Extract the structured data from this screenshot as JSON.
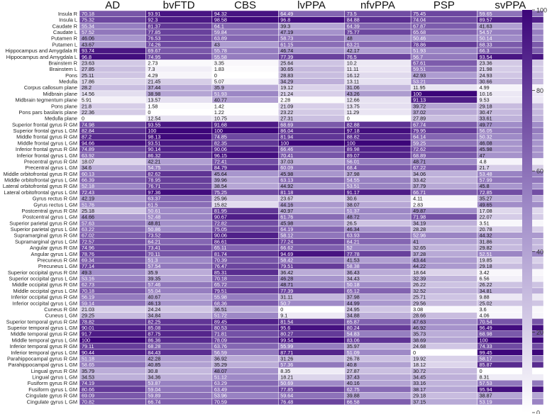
{
  "chart_data": {
    "type": "heatmap",
    "title": "",
    "xlabel": "",
    "ylabel": "",
    "columns": [
      "AD",
      "bvFTD",
      "CBS",
      "lvPPA",
      "nfvPPA",
      "PSP",
      "svPPA"
    ],
    "rows": [
      "Insula R",
      "Insula L",
      "Caudate R",
      "Caudate L",
      "Putamen R",
      "Putamen L",
      "Hippocampus and Amygdala R",
      "Hippocampus and Amygdala L",
      "Brainstem R",
      "Brainstem L",
      "Pons",
      "Medulla",
      "Corpus callosum plane",
      "Midbrain plane",
      "Midbrain tegmentum plane",
      "Pons plane",
      "Pons pars basilaris plane",
      "Medulla plane",
      "Superior frontal gyrus R GM",
      "Superior frontal gyrus L GM",
      "Middle frontal gyrus R GM",
      "Middle frontal gyrus L GM",
      "Inferior frontal gyrus R GM",
      "Inferior frontal gyrus L GM",
      "Precentral gyrus R GM",
      "Precentral gyrus L GM",
      "Middle orbitofrontal gyrus R GM",
      "Middle orbitofrontal gyrus L GM",
      "Lateral orbitofrontal gyrus R GM",
      "Lateral orbitofrontal gyrus L GM",
      "Gyrus rectus R GM",
      "Gyrus rectus L GM",
      "Postcentral gyrus R GM",
      "Postcentral gyrus L GM",
      "Superior parietal gyrus R GM",
      "Superior parietal gyrus L GM",
      "Supramarginal gyrus R GM",
      "Supramarginal gyrus L GM",
      "Angular gyrus R GM",
      "Angular gyrus L GM",
      "Precuneus R GM",
      "Precuneus L GM",
      "Superior occipital gyrus R GM",
      "Superior occipital gyrus L GM",
      "Middle occipital gyrus R GM",
      "Middle occipital gyrus L GM",
      "Inferior occipital gyrus R GM",
      "Inferior occipital gyrus L GM",
      "Cuneus R GM",
      "Cuneus L GM",
      "Superior temporal gyrus R GM",
      "Superior temporal gyrus L GM",
      "Middle temporal gyrus R GM",
      "Middle temporal gyrus L GM",
      "Inferior temporal gyrus R GM",
      "Inferior temporal gyrus L GM",
      "Parahippocampal gyrus R GM",
      "Parahippocampal gyrus L GM",
      "Lingual gyrus R GM",
      "Lingual gyrus L GM",
      "Fusiform gyrus R GM",
      "Fusiform gyrus L GM",
      "Cingulate gyrus R GM",
      "Cingulate gyrus L GM"
    ],
    "values": [
      [
        70.18,
        93.91,
        94.32,
        64.49,
        73.5,
        75.45,
        59.65
      ],
      [
        75.32,
        92.3,
        98.58,
        96.8,
        84.88,
        74.04,
        89.57
      ],
      [
        55.34,
        81.37,
        64.1,
        39.3,
        64.39,
        67.87,
        41.63
      ],
      [
        57.52,
        77.85,
        59.84,
        47.19,
        75.77,
        65.68,
        54.57
      ],
      [
        46.06,
        76.53,
        63.89,
        58.73,
        48,
        50.46,
        50.14
      ],
      [
        43.67,
        74.26,
        43,
        61.15,
        63.21,
        78.86,
        68.33
      ],
      [
        93.74,
        69.67,
        55.78,
        46.74,
        42.17,
        51.93,
        66.3
      ],
      [
        96.8,
        74.95,
        55.58,
        77.39,
        76.5,
        56.7,
        93.54
      ],
      [
        23.63,
        2.73,
        3.35,
        25.64,
        10.2,
        67.61,
        23.36
      ],
      [
        27.85,
        7.3,
        1.83,
        30.65,
        11.11,
        59.51,
        21.98
      ],
      [
        25.11,
        4.29,
        0,
        28.83,
        16.12,
        42.93,
        24.93
      ],
      [
        17.86,
        21.45,
        5.07,
        34.29,
        13.11,
        53.21,
        30.66
      ],
      [
        28.2,
        37.44,
        35.9,
        19.12,
        31.06,
        11.95,
        4.99
      ],
      [
        14.56,
        38.98,
        51.93,
        21.24,
        43.26,
        100,
        10.16
      ],
      [
        5.91,
        13.57,
        40.77,
        2.28,
        12.66,
        91.13,
        9.53
      ],
      [
        21.8,
        1.58,
        1.42,
        21.09,
        13.75,
        39.72,
        29.18
      ],
      [
        22.36,
        0,
        1.22,
        23.22,
        11.29,
        37.02,
        30.47
      ],
      [
        0,
        12.54,
        10.75,
        27.31,
        0,
        27.89,
        33.61
      ],
      [
        74.98,
        93.55,
        91.68,
        68.69,
        82.88,
        67.74,
        49.77
      ],
      [
        82.84,
        100,
        100,
        86.04,
        97.18,
        79.95,
        56.05
      ],
      [
        87.2,
        98.13,
        74.85,
        81.94,
        88.82,
        64.14,
        50.32
      ],
      [
        94.66,
        93.51,
        82.35,
        100,
        100,
        59.25,
        46.08
      ],
      [
        74.89,
        90.14,
        90.06,
        66.46,
        89.98,
        72.62,
        45.98
      ],
      [
        63.92,
        86.32,
        96.15,
        70.41,
        89.07,
        68.89,
        47
      ],
      [
        18.07,
        42.21,
        72.41,
        37.03,
        56.01,
        48.71,
        4.8
      ],
      [
        34.6,
        54.75,
        84.79,
        60.09,
        68.4,
        67.22,
        21.7
      ],
      [
        60.13,
        82.62,
        45.64,
        45.98,
        37.98,
        34.06,
        53.48
      ],
      [
        66.39,
        78.95,
        39.96,
        63.13,
        54.55,
        33.42,
        57.99
      ],
      [
        52.18,
        76.71,
        38.54,
        44.92,
        53.51,
        37.79,
        45.8
      ],
      [
        72.43,
        97.36,
        75.25,
        81.18,
        91.17,
        66.71,
        72.85
      ],
      [
        42.19,
        63.37,
        25.96,
        23.67,
        30.6,
        4.11,
        35.27
      ],
      [
        51.76,
        61.5,
        15.82,
        44.16,
        38.07,
        2.83,
        49.65
      ],
      [
        25.18,
        50.61,
        81.95,
        40.97,
        51.37,
        49.87,
        17.08
      ],
      [
        44.66,
        52.48,
        90.67,
        61.76,
        48.72,
        71.98,
        22.07
      ],
      [
        57.63,
        48.81,
        72.82,
        45.98,
        26.5,
        34.19,
        3.51
      ],
      [
        63.22,
        50.86,
        75.05,
        64.19,
        46.34,
        28.28,
        20.78
      ],
      [
        67.02,
        73.52,
        90.06,
        58.12,
        63.93,
        52.96,
        44.32
      ],
      [
        72.57,
        64.21,
        86.61,
        77.24,
        64.21,
        41,
        31.86
      ],
      [
        74.96,
        73.41,
        65.11,
        66.62,
        52,
        32.65,
        29.82
      ],
      [
        78.76,
        70.11,
        81.74,
        94.69,
        77.78,
        37.28,
        52.51
      ],
      [
        69.34,
        51.3,
        70.39,
        58.42,
        41.53,
        43.44,
        19.85
      ],
      [
        77.14,
        57.54,
        76.47,
        79.51,
        58.38,
        44.22,
        29.18
      ],
      [
        49.3,
        35.9,
        85.31,
        36.42,
        36.43,
        18.64,
        3.42
      ],
      [
        53.16,
        39.35,
        70.18,
        46.28,
        34.43,
        32.39,
        6.56
      ],
      [
        62.73,
        57.46,
        65.72,
        48.71,
        50.18,
        26.22,
        26.22
      ],
      [
        70.18,
        55.04,
        79.51,
        77.39,
        65.12,
        32.52,
        34.81
      ],
      [
        56.19,
        40.67,
        55.98,
        31.11,
        37.98,
        25.71,
        9.88
      ],
      [
        59.14,
        46.13,
        68.36,
        50.7,
        44.99,
        29.56,
        25.02
      ],
      [
        21.03,
        24.24,
        36.51,
        0,
        24.95,
        3.08,
        3.6
      ],
      [
        29.25,
        34.84,
        51.72,
        9.1,
        34.88,
        28.66,
        4.06
      ],
      [
        78.82,
        82.25,
        89.45,
        81.54,
        65.87,
        47.63,
        70.54
      ],
      [
        90.01,
        85.08,
        80.53,
        95.6,
        80.24,
        46.92,
        96.49
      ],
      [
        91.7,
        87.75,
        71.81,
        80.27,
        54.83,
        35.73,
        68.98
      ],
      [
        100,
        86.36,
        78.09,
        99.54,
        83.06,
        38.69,
        100
      ],
      [
        79.11,
        68.28,
        63.76,
        55.99,
        35.97,
        24.68,
        74.33
      ],
      [
        90.44,
        84.43,
        56.59,
        87.71,
        51.09,
        0,
        99.45
      ],
      [
        51.18,
        42.28,
        36.92,
        31.26,
        26.78,
        19.92,
        58.17
      ],
      [
        58.65,
        40.85,
        35.29,
        57.36,
        40.8,
        18.12,
        85.87
      ],
      [
        35.79,
        30.8,
        48.07,
        8.35,
        27.87,
        30.72,
        0
      ],
      [
        34.53,
        34.36,
        51.12,
        18.21,
        37.43,
        34.45,
        8.31
      ],
      [
        74.19,
        53.87,
        63.29,
        50.69,
        40.16,
        33.16,
        57.53
      ],
      [
        80.66,
        59.04,
        63.49,
        77.85,
        62.75,
        38.17,
        95.94
      ],
      [
        69.09,
        59.89,
        53.96,
        59.64,
        39.88,
        29.18,
        38.87
      ],
      [
        70.82,
        66.74,
        70.59,
        76.48,
        66.58,
        37.15,
        53.19
      ]
    ],
    "colorbar": {
      "vmin": 0,
      "vmax": 100,
      "ticks": [
        0,
        20,
        40,
        60,
        80,
        100
      ],
      "low_color": "#ffffff",
      "high_color": "#3c0579"
    }
  }
}
